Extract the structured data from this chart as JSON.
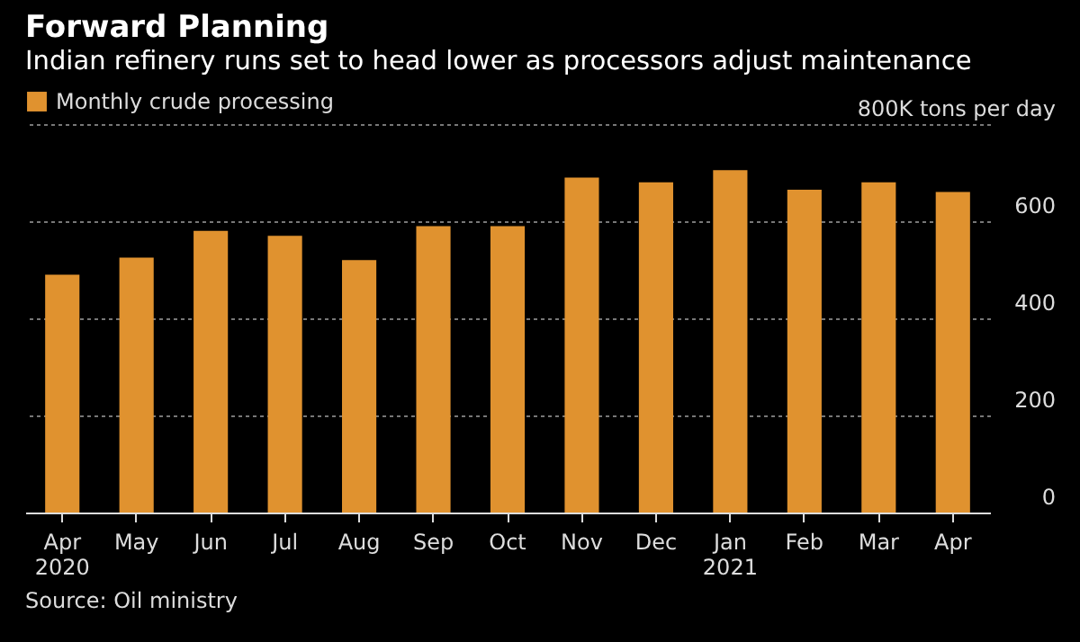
{
  "chart_data": {
    "type": "bar",
    "title": "Forward Planning",
    "subtitle": "Indian refinery runs set to head lower as processors adjust maintenance",
    "categories": [
      "Apr 2020",
      "May",
      "Jun",
      "Jul",
      "Aug",
      "Sep",
      "Oct",
      "Nov",
      "Dec",
      "Jan 2021",
      "Feb",
      "Mar",
      "Apr"
    ],
    "series": [
      {
        "name": "Monthly crude processing",
        "color": "#e0922f",
        "values": [
          490,
          525,
          580,
          570,
          520,
          590,
          590,
          690,
          680,
          705,
          665,
          680,
          660
        ]
      }
    ],
    "ylim": [
      0,
      800
    ],
    "yticks": [
      0,
      200,
      400,
      600,
      {
        "value": 800,
        "label": "800K tons per day"
      }
    ],
    "grid": "y",
    "legend": "top left",
    "annotations": [
      "Source: Oil ministry"
    ]
  }
}
